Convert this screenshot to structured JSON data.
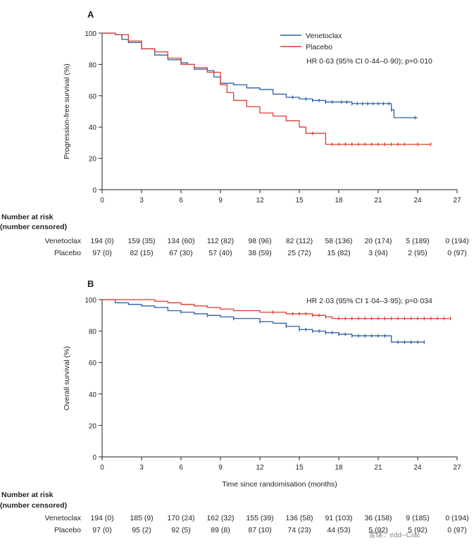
{
  "chart_data": [
    {
      "panel": "A",
      "type": "line",
      "ylabel": "Progression-free survival (%)",
      "xlabel": "",
      "xlim": [
        0,
        27
      ],
      "ylim": [
        0,
        100
      ],
      "xticks": [
        "0",
        "3",
        "6",
        "9",
        "12",
        "15",
        "18",
        "21",
        "24",
        "27"
      ],
      "yticks": [
        "0",
        "20",
        "40",
        "60",
        "80",
        "100"
      ],
      "legend_position": "top-right",
      "annotation": "HR 0·63 (95% CI 0·44–0·90); p=0·010",
      "series": [
        {
          "name": "Venetoclax",
          "color": "#2a5ea8",
          "points": [
            [
              0,
              100
            ],
            [
              0.5,
              100
            ],
            [
              1,
              99
            ],
            [
              1.5,
              96
            ],
            [
              2,
              94
            ],
            [
              3,
              90
            ],
            [
              4,
              86
            ],
            [
              5,
              83
            ],
            [
              6,
              81
            ],
            [
              6.5,
              80
            ],
            [
              7,
              77
            ],
            [
              8,
              76
            ],
            [
              8.5,
              72
            ],
            [
              9,
              68
            ],
            [
              10,
              67
            ],
            [
              11,
              65
            ],
            [
              12,
              64
            ],
            [
              13,
              61
            ],
            [
              14,
              59
            ],
            [
              15,
              58
            ],
            [
              16,
              57
            ],
            [
              17,
              56
            ],
            [
              18,
              56
            ],
            [
              19,
              55
            ],
            [
              20,
              55
            ],
            [
              21,
              55
            ],
            [
              22,
              55
            ],
            [
              22,
              51
            ],
            [
              22.2,
              46
            ],
            [
              24,
              46
            ]
          ],
          "censor_x": [
            14.5,
            15.5,
            16,
            16.5,
            17,
            17.5,
            18.2,
            18.6,
            19,
            19.4,
            19.8,
            20.2,
            20.6,
            21,
            21.4,
            21.8,
            22,
            23.8
          ]
        },
        {
          "name": "Placebo",
          "color": "#e03a2f",
          "points": [
            [
              0,
              100
            ],
            [
              1,
              99
            ],
            [
              2,
              95
            ],
            [
              3,
              90
            ],
            [
              4,
              88
            ],
            [
              5,
              84
            ],
            [
              6,
              80
            ],
            [
              7,
              78
            ],
            [
              8,
              75
            ],
            [
              9,
              67
            ],
            [
              9.5,
              62
            ],
            [
              10,
              57
            ],
            [
              11,
              53
            ],
            [
              12,
              49
            ],
            [
              13,
              47
            ],
            [
              14,
              44
            ],
            [
              15,
              40
            ],
            [
              15.5,
              36
            ],
            [
              17,
              31
            ],
            [
              17,
              29
            ],
            [
              25,
              29
            ]
          ],
          "censor_x": [
            16,
            17.5,
            18,
            18.5,
            19,
            19.5,
            20,
            20.5,
            21,
            21.5,
            22,
            22.5,
            23,
            24,
            25
          ]
        }
      ],
      "risk_table": {
        "heading": "Number at risk",
        "subheading": "(number censored)",
        "rows": [
          {
            "label": "Venetoclax",
            "values": [
              "194 (0)",
              "159 (35)",
              "134 (60)",
              "112 (82)",
              "98 (96)",
              "82 (112)",
              "58 (136)",
              "20 (174)",
              "5 (189)",
              "0 (194)"
            ]
          },
          {
            "label": "Placebo",
            "values": [
              "97 (0)",
              "82 (15)",
              "67 (30)",
              "57 (40)",
              "38 (59)",
              "25 (72)",
              "15 (82)",
              "3 (94)",
              "2 (95)",
              "0 (97)"
            ]
          }
        ]
      }
    },
    {
      "panel": "B",
      "type": "line",
      "ylabel": "Overall survival (%)",
      "xlabel": "Time since randomisation (months)",
      "xlim": [
        0,
        27
      ],
      "ylim": [
        0,
        100
      ],
      "xticks": [
        "0",
        "3",
        "6",
        "9",
        "12",
        "15",
        "18",
        "21",
        "24",
        "27"
      ],
      "yticks": [
        "0",
        "20",
        "40",
        "60",
        "80",
        "100"
      ],
      "annotation": "HR 2·03 (95% CI 1·04–3·95); p=0·034",
      "series": [
        {
          "name": "Venetoclax",
          "color": "#2a5ea8",
          "points": [
            [
              0,
              100
            ],
            [
              1,
              98
            ],
            [
              2,
              97
            ],
            [
              3,
              96
            ],
            [
              4,
              95
            ],
            [
              5,
              93
            ],
            [
              6,
              92
            ],
            [
              7,
              91
            ],
            [
              8,
              90
            ],
            [
              9,
              89
            ],
            [
              10,
              88
            ],
            [
              12,
              86
            ],
            [
              13,
              85
            ],
            [
              14,
              83
            ],
            [
              15,
              81
            ],
            [
              16,
              80
            ],
            [
              17,
              79
            ],
            [
              18,
              78
            ],
            [
              19,
              77
            ],
            [
              22,
              77
            ],
            [
              22,
              73
            ],
            [
              24.5,
              73
            ]
          ],
          "censor_x": [
            6,
            8,
            10,
            12,
            14,
            15,
            15.5,
            16,
            16.5,
            17,
            17.5,
            18,
            18.5,
            19,
            19.5,
            20,
            20.5,
            21,
            21.5,
            22.5,
            23,
            23.5,
            24,
            24.5
          ]
        },
        {
          "name": "Placebo",
          "color": "#e03a2f",
          "points": [
            [
              0,
              100
            ],
            [
              3,
              100
            ],
            [
              4,
              99
            ],
            [
              5,
              98
            ],
            [
              6,
              97
            ],
            [
              7,
              96
            ],
            [
              8,
              95
            ],
            [
              9,
              94
            ],
            [
              10,
              93
            ],
            [
              12,
              92
            ],
            [
              14,
              91
            ],
            [
              16,
              90
            ],
            [
              17,
              89
            ],
            [
              17.5,
              88
            ],
            [
              26.5,
              88
            ]
          ],
          "censor_x": [
            13,
            14.5,
            15,
            15.5,
            16,
            16.5,
            17,
            18,
            18.5,
            19,
            19.5,
            20,
            20.5,
            21,
            21.5,
            22,
            22.5,
            23,
            23.5,
            24,
            24.5,
            25,
            25.5,
            26,
            26.5
          ]
        }
      ],
      "risk_table": {
        "heading": "Number at risk",
        "subheading": "(number censored)",
        "rows": [
          {
            "label": "Venetoclax",
            "values": [
              "194 (0)",
              "185 (9)",
              "170 (24)",
              "162 (32)",
              "155 (39)",
              "136 (58)",
              "91 (103)",
              "36 (158)",
              "9 (185)",
              "0 (194)"
            ]
          },
          {
            "label": "Placebo",
            "values": [
              "97 (0)",
              "95 (2)",
              "92 (5)",
              "89 (8)",
              "87 (10)",
              "74 (23)",
              "44 (53)",
              "5 (92)",
              "5 (92)",
              "0 (97)"
            ]
          }
        ]
      }
    }
  ],
  "watermark": "雪球：edd--Ciac"
}
